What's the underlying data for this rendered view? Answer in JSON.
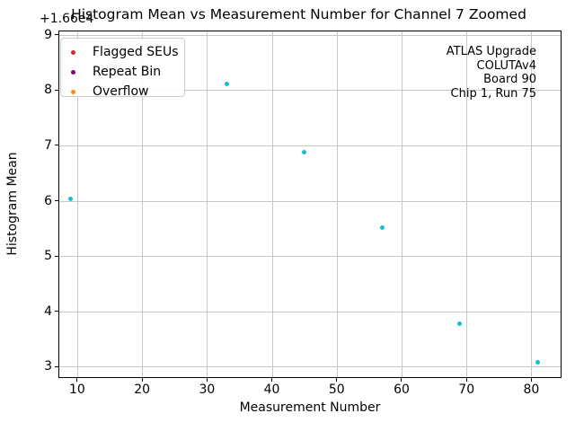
{
  "chart_data": {
    "type": "scatter",
    "title": "Histogram Mean vs Measurement Number for Channel 7 Zoomed",
    "xlabel": "Measurement Number",
    "ylabel": "Histogram Mean",
    "y_offset_text": "+1.66e4",
    "xlim": [
      7.1,
      84.65
    ],
    "ylim": [
      2.79,
      9.08
    ],
    "xticks": [
      10,
      20,
      30,
      40,
      50,
      60,
      70,
      80
    ],
    "yticks": [
      3,
      4,
      5,
      6,
      7,
      8,
      9
    ],
    "grid": true,
    "legend_position": "upper left",
    "series": [
      {
        "name": "Histogram Mean",
        "marker_color": "#17becf",
        "points": [
          [
            9,
            6.03
          ],
          [
            33,
            8.11
          ],
          [
            45,
            6.87
          ],
          [
            57,
            5.51
          ],
          [
            69,
            3.78
          ],
          [
            81,
            3.07
          ]
        ]
      }
    ],
    "legend": [
      {
        "label": "Flagged SEUs",
        "color": "#d62728"
      },
      {
        "label": "Repeat Bin",
        "color": "#800080"
      },
      {
        "label": "Overflow",
        "color": "#ff8c00"
      }
    ],
    "annotation_lines": [
      "ATLAS Upgrade",
      "COLUTAv4",
      "Board 90",
      "Chip 1, Run 75"
    ]
  }
}
